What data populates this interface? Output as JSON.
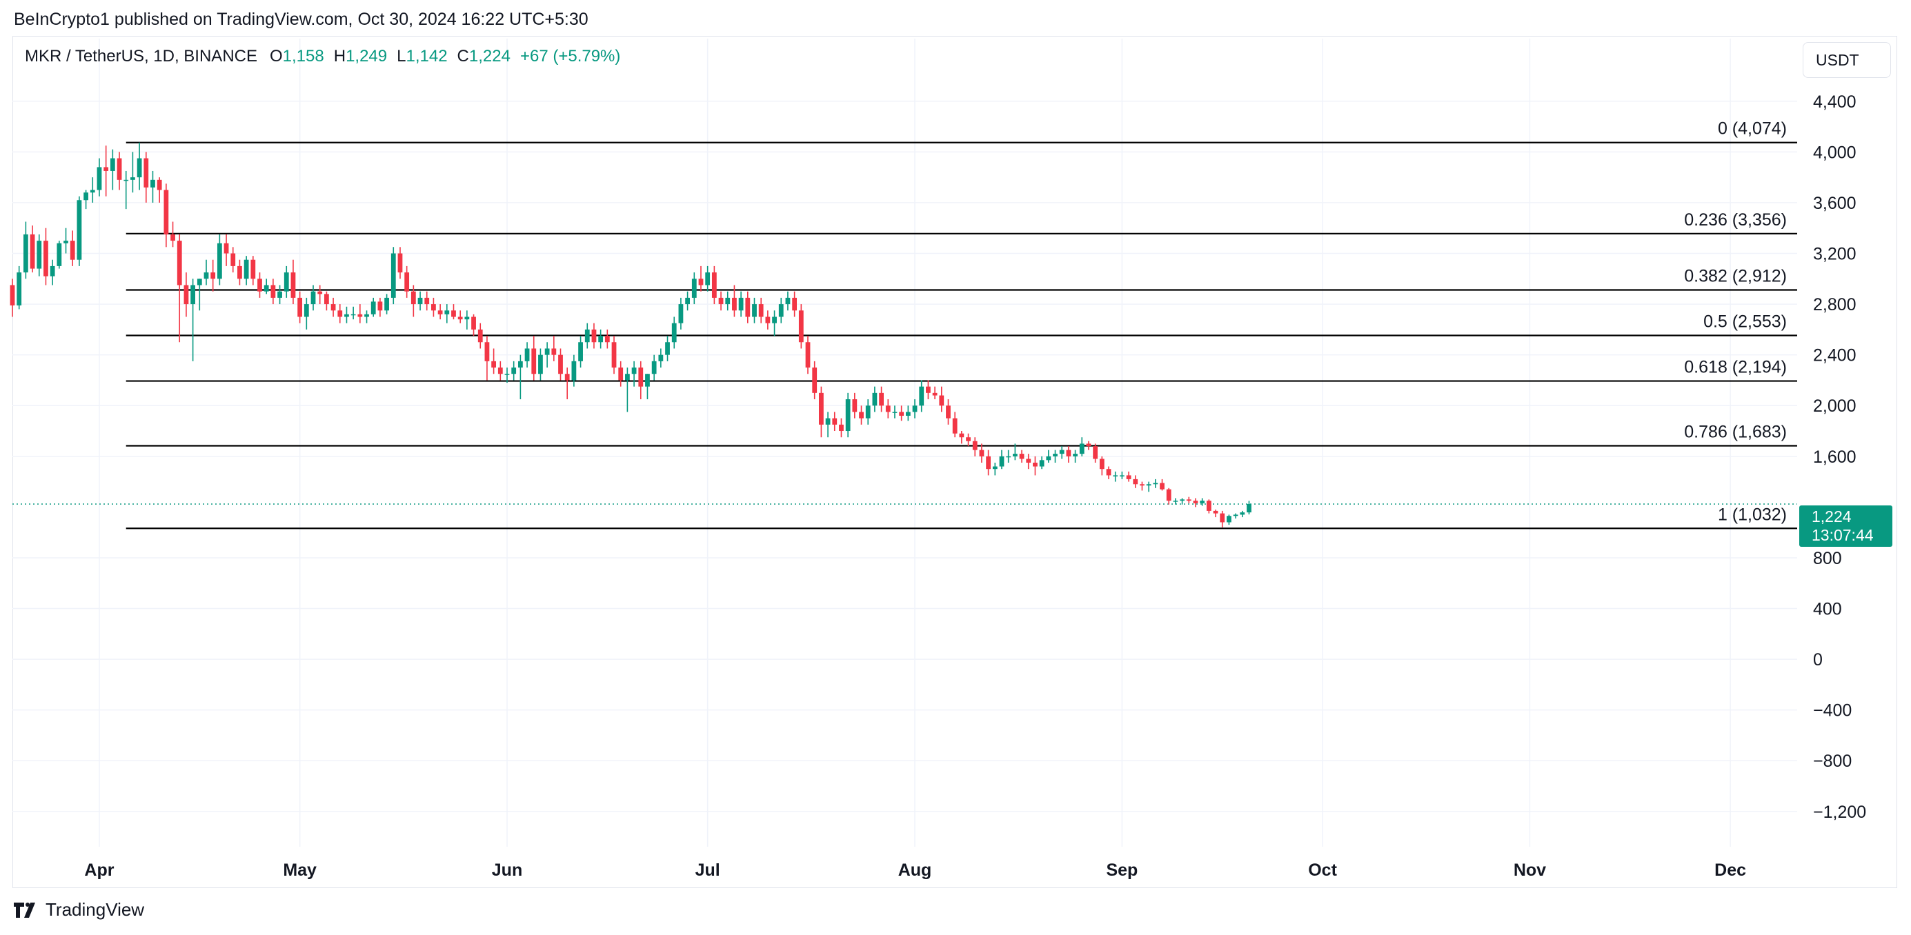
{
  "publisher_line": "BeInCrypto1 published on TradingView.com, Oct 30, 2024 16:22 UTC+5:30",
  "legend": {
    "symbol": "MKR / TetherUS, 1D, BINANCE",
    "open_label": "O",
    "open": "1,158",
    "high_label": "H",
    "high": "1,249",
    "low_label": "L",
    "low": "1,142",
    "close_label": "C",
    "close": "1,224",
    "change": "+67 (+5.79%)"
  },
  "currency_button": "USDT",
  "last_price": {
    "price": "1,224",
    "countdown": "13:07:44"
  },
  "footer": {
    "brand": "TradingView"
  },
  "colors": {
    "up": "#089981",
    "down": "#F23645",
    "fib_line": "#000000",
    "grid": "#F0F3FA",
    "text": "#131722"
  },
  "chart_data": {
    "type": "candlestick",
    "symbol": "MKR / TetherUS",
    "interval": "1D",
    "exchange": "BINANCE",
    "x_axis": {
      "type": "date",
      "range": [
        "2024-03-19",
        "2024-12-11"
      ],
      "tick_labels": [
        {
          "date": "2024-04-01",
          "label": "Apr"
        },
        {
          "date": "2024-05-01",
          "label": "May"
        },
        {
          "date": "2024-06-01",
          "label": "Jun"
        },
        {
          "date": "2024-07-01",
          "label": "Jul"
        },
        {
          "date": "2024-08-01",
          "label": "Aug"
        },
        {
          "date": "2024-09-01",
          "label": "Sep"
        },
        {
          "date": "2024-10-01",
          "label": "Oct"
        },
        {
          "date": "2024-11-01",
          "label": "Nov"
        },
        {
          "date": "2024-12-01",
          "label": "Dec"
        }
      ]
    },
    "y_axis": {
      "currency": "USDT",
      "range": [
        -1500,
        4600
      ],
      "tick_labels": [
        {
          "value": 4400,
          "label": "4,400"
        },
        {
          "value": 4000,
          "label": "4,000"
        },
        {
          "value": 3600,
          "label": "3,600"
        },
        {
          "value": 3200,
          "label": "3,200"
        },
        {
          "value": 2800,
          "label": "2,800"
        },
        {
          "value": 2400,
          "label": "2,400"
        },
        {
          "value": 2000,
          "label": "2,000"
        },
        {
          "value": 1600,
          "label": "1,600"
        },
        {
          "value": 800,
          "label": "800"
        },
        {
          "value": 400,
          "label": "400"
        },
        {
          "value": 0,
          "label": "0"
        },
        {
          "value": -400,
          "label": "−400"
        },
        {
          "value": -800,
          "label": "−800"
        },
        {
          "value": -1200,
          "label": "−1,200"
        }
      ]
    },
    "grid": true,
    "last_price": 1224,
    "fibonacci_retracement": {
      "start_date": "2024-04-05",
      "levels": [
        {
          "ratio": "0",
          "price": 4074,
          "label": "0 (4,074)"
        },
        {
          "ratio": "0.236",
          "price": 3356,
          "label": "0.236 (3,356)"
        },
        {
          "ratio": "0.382",
          "price": 2912,
          "label": "0.382 (2,912)"
        },
        {
          "ratio": "0.5",
          "price": 2553,
          "label": "0.5 (2,553)"
        },
        {
          "ratio": "0.618",
          "price": 2194,
          "label": "0.618 (2,194)"
        },
        {
          "ratio": "0.786",
          "price": 1683,
          "label": "0.786 (1,683)"
        },
        {
          "ratio": "1",
          "price": 1032,
          "label": "1 (1,032)"
        }
      ]
    },
    "candles_start_date": "2024-03-19",
    "candles": [
      [
        2950,
        3000,
        2700,
        2790
      ],
      [
        2790,
        3100,
        2760,
        3050
      ],
      [
        3050,
        3450,
        3000,
        3350
      ],
      [
        3350,
        3420,
        3050,
        3080
      ],
      [
        3080,
        3350,
        3020,
        3300
      ],
      [
        3300,
        3400,
        2950,
        3020
      ],
      [
        3020,
        3150,
        2950,
        3100
      ],
      [
        3100,
        3300,
        3080,
        3280
      ],
      [
        3280,
        3400,
        3200,
        3300
      ],
      [
        3300,
        3380,
        3100,
        3150
      ],
      [
        3150,
        3650,
        3100,
        3620
      ],
      [
        3620,
        3700,
        3550,
        3680
      ],
      [
        3680,
        3800,
        3600,
        3700
      ],
      [
        3700,
        3950,
        3650,
        3880
      ],
      [
        3880,
        4050,
        3650,
        3850
      ],
      [
        3850,
        4020,
        3700,
        3950
      ],
      [
        3950,
        4000,
        3700,
        3780
      ],
      [
        3780,
        3850,
        3550,
        3780
      ],
      [
        3780,
        4000,
        3680,
        3800
      ],
      [
        3800,
        4074,
        3700,
        3950
      ],
      [
        3950,
        4000,
        3600,
        3720
      ],
      [
        3720,
        3850,
        3600,
        3780
      ],
      [
        3780,
        3800,
        3600,
        3700
      ],
      [
        3700,
        3750,
        3250,
        3350
      ],
      [
        3350,
        3450,
        3250,
        3300
      ],
      [
        3300,
        3350,
        2500,
        2950
      ],
      [
        2950,
        3050,
        2700,
        2800
      ],
      [
        2800,
        3000,
        2350,
        2950
      ],
      [
        2950,
        3000,
        2750,
        3000
      ],
      [
        3000,
        3150,
        2950,
        3050
      ],
      [
        3050,
        3150,
        2900,
        3000
      ],
      [
        3000,
        3350,
        2950,
        3280
      ],
      [
        3280,
        3350,
        3100,
        3200
      ],
      [
        3200,
        3250,
        3050,
        3100
      ],
      [
        3100,
        3150,
        2950,
        3000
      ],
      [
        3000,
        3180,
        2950,
        3150
      ],
      [
        3150,
        3180,
        2950,
        3000
      ],
      [
        3000,
        3050,
        2850,
        2900
      ],
      [
        2900,
        3000,
        2880,
        2950
      ],
      [
        2950,
        3000,
        2800,
        2850
      ],
      [
        2850,
        2950,
        2800,
        2900
      ],
      [
        2900,
        3100,
        2850,
        3050
      ],
      [
        3050,
        3150,
        2800,
        2850
      ],
      [
        2850,
        2900,
        2650,
        2700
      ],
      [
        2700,
        2850,
        2600,
        2800
      ],
      [
        2800,
        2950,
        2750,
        2900
      ],
      [
        2900,
        2950,
        2800,
        2880
      ],
      [
        2880,
        2900,
        2750,
        2800
      ],
      [
        2800,
        2850,
        2700,
        2750
      ],
      [
        2750,
        2800,
        2650,
        2700
      ],
      [
        2700,
        2780,
        2650,
        2720
      ],
      [
        2720,
        2780,
        2680,
        2720
      ],
      [
        2720,
        2800,
        2650,
        2700
      ],
      [
        2700,
        2750,
        2650,
        2720
      ],
      [
        2720,
        2850,
        2700,
        2820
      ],
      [
        2820,
        2850,
        2700,
        2750
      ],
      [
        2750,
        2880,
        2720,
        2850
      ],
      [
        2850,
        3250,
        2800,
        3200
      ],
      [
        3200,
        3250,
        3000,
        3050
      ],
      [
        3050,
        3100,
        2850,
        2900
      ],
      [
        2900,
        2950,
        2700,
        2800
      ],
      [
        2800,
        2900,
        2750,
        2850
      ],
      [
        2850,
        2900,
        2750,
        2800
      ],
      [
        2800,
        2850,
        2700,
        2750
      ],
      [
        2750,
        2800,
        2680,
        2720
      ],
      [
        2720,
        2800,
        2650,
        2750
      ],
      [
        2750,
        2800,
        2680,
        2700
      ],
      [
        2700,
        2750,
        2650,
        2680
      ],
      [
        2680,
        2750,
        2600,
        2700
      ],
      [
        2700,
        2720,
        2550,
        2600
      ],
      [
        2600,
        2650,
        2450,
        2500
      ],
      [
        2500,
        2550,
        2200,
        2350
      ],
      [
        2350,
        2450,
        2250,
        2300
      ],
      [
        2300,
        2350,
        2200,
        2250
      ],
      [
        2250,
        2300,
        2180,
        2250
      ],
      [
        2250,
        2350,
        2200,
        2300
      ],
      [
        2300,
        2400,
        2050,
        2350
      ],
      [
        2350,
        2500,
        2300,
        2450
      ],
      [
        2450,
        2550,
        2200,
        2250
      ],
      [
        2250,
        2450,
        2200,
        2400
      ],
      [
        2400,
        2500,
        2300,
        2450
      ],
      [
        2450,
        2550,
        2350,
        2400
      ],
      [
        2400,
        2450,
        2200,
        2250
      ],
      [
        2250,
        2300,
        2050,
        2200
      ],
      [
        2200,
        2400,
        2150,
        2350
      ],
      [
        2350,
        2550,
        2300,
        2500
      ],
      [
        2500,
        2650,
        2450,
        2600
      ],
      [
        2600,
        2650,
        2450,
        2500
      ],
      [
        2500,
        2600,
        2450,
        2550
      ],
      [
        2550,
        2600,
        2450,
        2500
      ],
      [
        2500,
        2550,
        2250,
        2300
      ],
      [
        2300,
        2350,
        2150,
        2200
      ],
      [
        2200,
        2300,
        1950,
        2250
      ],
      [
        2250,
        2350,
        2150,
        2300
      ],
      [
        2300,
        2350,
        2050,
        2150
      ],
      [
        2150,
        2250,
        2050,
        2250
      ],
      [
        2250,
        2400,
        2200,
        2350
      ],
      [
        2350,
        2450,
        2300,
        2400
      ],
      [
        2400,
        2550,
        2350,
        2500
      ],
      [
        2500,
        2700,
        2450,
        2650
      ],
      [
        2650,
        2850,
        2600,
        2800
      ],
      [
        2800,
        2900,
        2750,
        2850
      ],
      [
        2850,
        3050,
        2800,
        3000
      ],
      [
        3000,
        3100,
        2900,
        2950
      ],
      [
        2950,
        3100,
        2900,
        3050
      ],
      [
        3050,
        3100,
        2800,
        2850
      ],
      [
        2850,
        2900,
        2750,
        2800
      ],
      [
        2800,
        2900,
        2750,
        2850
      ],
      [
        2850,
        2950,
        2700,
        2750
      ],
      [
        2750,
        2900,
        2700,
        2850
      ],
      [
        2850,
        2900,
        2650,
        2700
      ],
      [
        2700,
        2850,
        2650,
        2800
      ],
      [
        2800,
        2850,
        2650,
        2700
      ],
      [
        2700,
        2750,
        2600,
        2650
      ],
      [
        2650,
        2750,
        2550,
        2700
      ],
      [
        2700,
        2850,
        2650,
        2800
      ],
      [
        2800,
        2900,
        2750,
        2850
      ],
      [
        2850,
        2900,
        2700,
        2750
      ],
      [
        2750,
        2800,
        2450,
        2500
      ],
      [
        2500,
        2550,
        2250,
        2300
      ],
      [
        2300,
        2350,
        2050,
        2100
      ],
      [
        2100,
        2150,
        1750,
        1850
      ],
      [
        1850,
        1950,
        1750,
        1900
      ],
      [
        1900,
        1950,
        1800,
        1850
      ],
      [
        1850,
        1900,
        1750,
        1800
      ],
      [
        1800,
        2100,
        1750,
        2050
      ],
      [
        2050,
        2100,
        1900,
        1950
      ],
      [
        1950,
        2000,
        1850,
        1900
      ],
      [
        1900,
        2050,
        1850,
        2000
      ],
      [
        2000,
        2150,
        1950,
        2100
      ],
      [
        2100,
        2150,
        1950,
        2000
      ],
      [
        2000,
        2050,
        1900,
        1950
      ],
      [
        1950,
        2000,
        1900,
        1950
      ],
      [
        1950,
        2000,
        1880,
        1920
      ],
      [
        1920,
        2000,
        1880,
        1950
      ],
      [
        1950,
        2050,
        1900,
        2000
      ],
      [
        2000,
        2200,
        1950,
        2150
      ],
      [
        2150,
        2200,
        2050,
        2100
      ],
      [
        2100,
        2150,
        2050,
        2080
      ],
      [
        2080,
        2150,
        1950,
        2000
      ],
      [
        2000,
        2050,
        1850,
        1900
      ],
      [
        1900,
        1950,
        1750,
        1780
      ],
      [
        1780,
        1800,
        1700,
        1750
      ],
      [
        1750,
        1780,
        1680,
        1720
      ],
      [
        1720,
        1750,
        1600,
        1650
      ],
      [
        1650,
        1700,
        1550,
        1600
      ],
      [
        1600,
        1650,
        1450,
        1500
      ],
      [
        1500,
        1550,
        1450,
        1520
      ],
      [
        1520,
        1650,
        1500,
        1600
      ],
      [
        1600,
        1650,
        1550,
        1600
      ],
      [
        1600,
        1700,
        1570,
        1620
      ],
      [
        1620,
        1650,
        1550,
        1580
      ],
      [
        1580,
        1620,
        1500,
        1550
      ],
      [
        1550,
        1600,
        1450,
        1520
      ],
      [
        1520,
        1600,
        1500,
        1570
      ],
      [
        1570,
        1650,
        1550,
        1600
      ],
      [
        1600,
        1650,
        1550,
        1620
      ],
      [
        1620,
        1680,
        1580,
        1650
      ],
      [
        1650,
        1680,
        1550,
        1600
      ],
      [
        1600,
        1650,
        1550,
        1620
      ],
      [
        1620,
        1750,
        1600,
        1700
      ],
      [
        1700,
        1720,
        1650,
        1680
      ],
      [
        1680,
        1700,
        1550,
        1580
      ],
      [
        1580,
        1600,
        1450,
        1500
      ],
      [
        1500,
        1520,
        1420,
        1450
      ],
      [
        1450,
        1480,
        1400,
        1450
      ],
      [
        1450,
        1480,
        1420,
        1450
      ],
      [
        1450,
        1480,
        1400,
        1420
      ],
      [
        1420,
        1450,
        1350,
        1380
      ],
      [
        1380,
        1400,
        1330,
        1370
      ],
      [
        1370,
        1400,
        1320,
        1380
      ],
      [
        1380,
        1420,
        1350,
        1390
      ],
      [
        1390,
        1420,
        1330,
        1340
      ],
      [
        1340,
        1350,
        1220,
        1250
      ],
      [
        1250,
        1270,
        1220,
        1250
      ],
      [
        1250,
        1270,
        1220,
        1260
      ],
      [
        1260,
        1280,
        1230,
        1250
      ],
      [
        1250,
        1270,
        1200,
        1230
      ],
      [
        1230,
        1270,
        1210,
        1250
      ],
      [
        1250,
        1260,
        1150,
        1170
      ],
      [
        1170,
        1180,
        1120,
        1150
      ],
      [
        1150,
        1170,
        1040,
        1080
      ],
      [
        1080,
        1140,
        1060,
        1130
      ],
      [
        1130,
        1150,
        1110,
        1140
      ],
      [
        1140,
        1170,
        1120,
        1158
      ],
      [
        1158,
        1249,
        1142,
        1224
      ]
    ]
  }
}
